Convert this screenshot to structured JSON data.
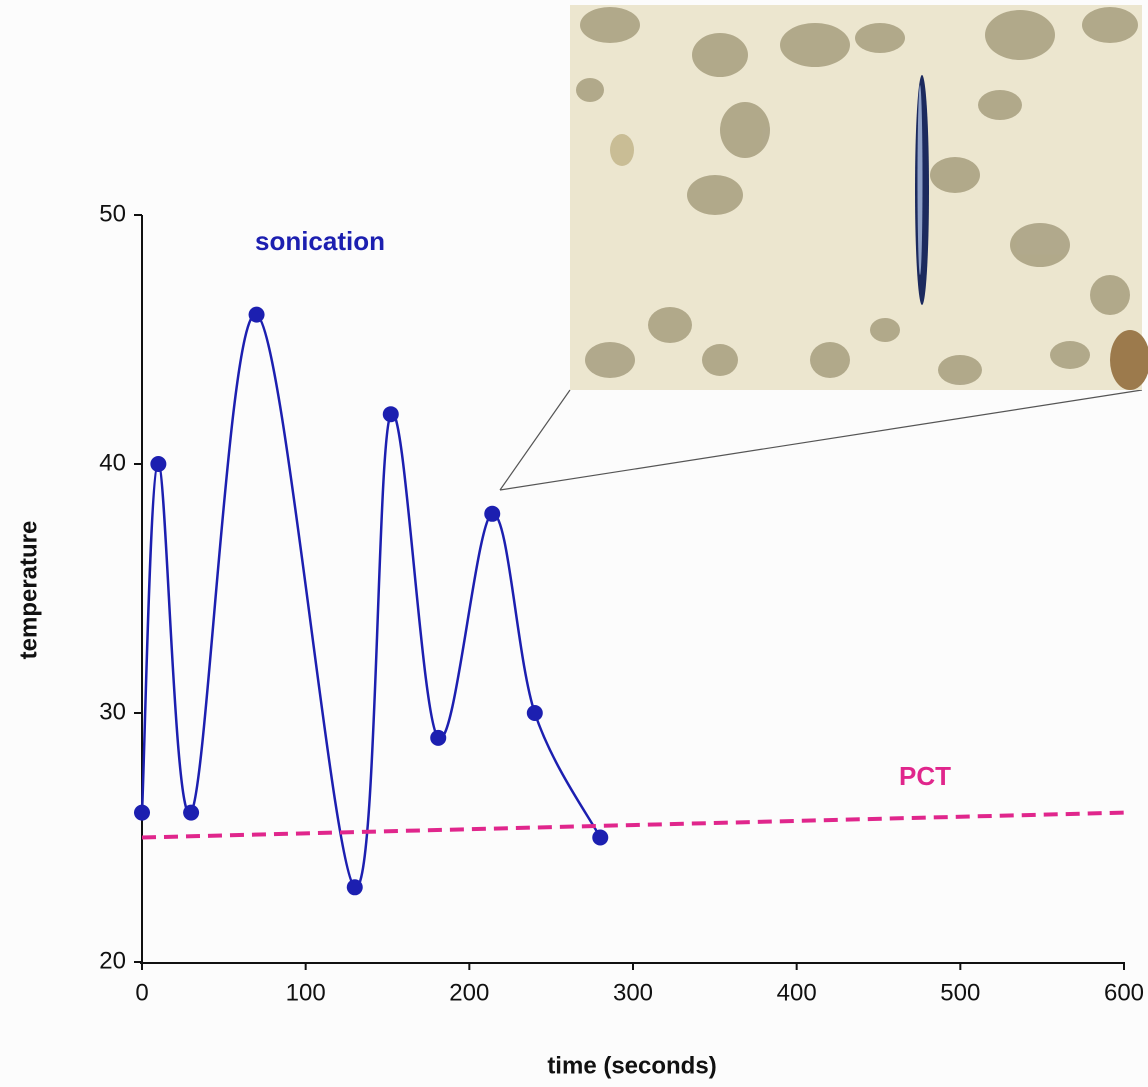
{
  "chart_data": {
    "type": "line",
    "x_label": "time (seconds)",
    "y_label": "temperature",
    "xlim": [
      0,
      600
    ],
    "xticks": [
      0,
      100,
      200,
      300,
      400,
      500,
      600
    ],
    "ylim": [
      20,
      50
    ],
    "yticks": [
      20,
      30,
      40,
      50
    ],
    "series": [
      {
        "name": "sonication",
        "color": "#1c1fb0",
        "style": "solid",
        "smooth": true,
        "markers": true,
        "x": [
          0,
          10,
          30,
          70,
          130,
          152,
          181,
          214,
          240,
          280
        ],
        "values": [
          26,
          40,
          26,
          46,
          23,
          42,
          29,
          38,
          30,
          25
        ]
      },
      {
        "name": "PCT",
        "color": "#e0268c",
        "style": "dashed",
        "smooth": false,
        "markers": false,
        "x": [
          0,
          600
        ],
        "values": [
          25,
          26
        ]
      }
    ]
  }
}
